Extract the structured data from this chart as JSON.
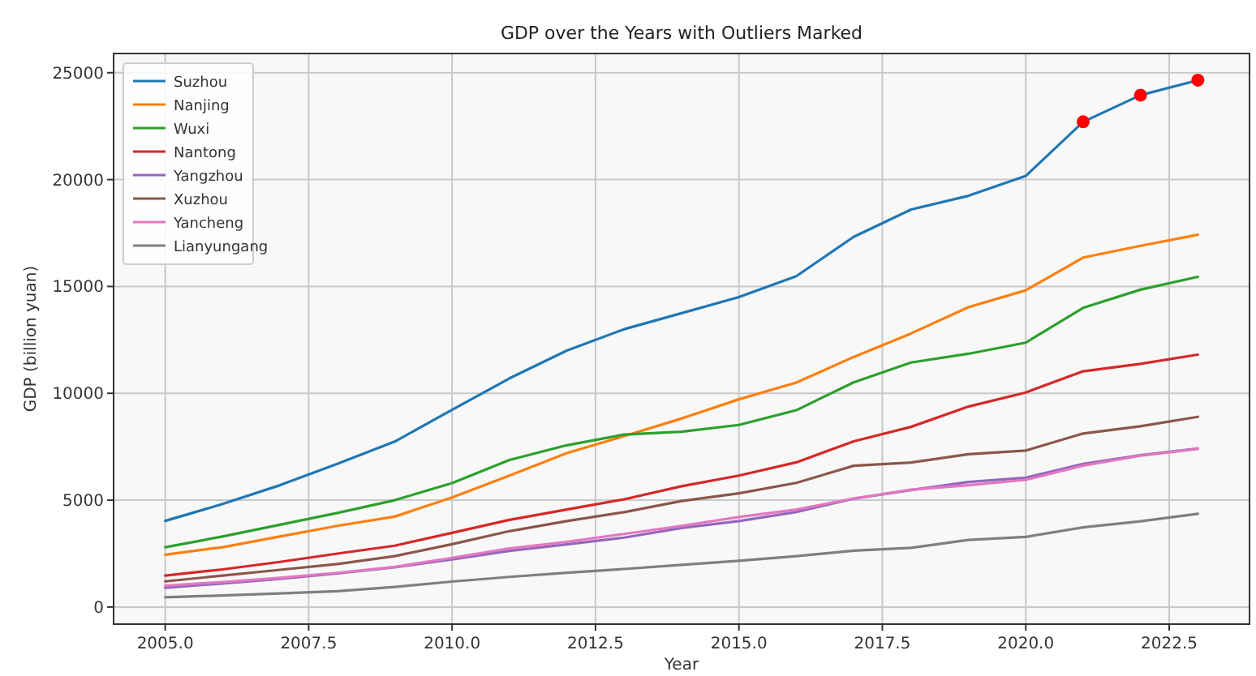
{
  "chart_data": {
    "type": "line",
    "title": "GDP over the Years with Outliers Marked",
    "xlabel": "Year",
    "ylabel": "GDP (billion yuan)",
    "x": [
      2005,
      2006,
      2007,
      2008,
      2009,
      2010,
      2011,
      2012,
      2013,
      2014,
      2015,
      2016,
      2017,
      2018,
      2019,
      2020,
      2021,
      2022,
      2023
    ],
    "series": [
      {
        "name": "Suzhou",
        "color": "#1f77b4",
        "values": [
          4030,
          4820,
          5700,
          6700,
          7740,
          9230,
          10700,
          12000,
          13000,
          13750,
          14500,
          15480,
          17320,
          18600,
          19240,
          20170,
          22700,
          23950,
          24650
        ]
      },
      {
        "name": "Nanjing",
        "color": "#ff7f0e",
        "values": [
          2450,
          2800,
          3300,
          3800,
          4230,
          5130,
          6150,
          7200,
          8000,
          8820,
          9720,
          10500,
          11700,
          12800,
          14030,
          14820,
          16350,
          16900,
          17420
        ]
      },
      {
        "name": "Wuxi",
        "color": "#2ca02c",
        "values": [
          2800,
          3300,
          3850,
          4400,
          5000,
          5800,
          6880,
          7570,
          8070,
          8200,
          8520,
          9210,
          10510,
          11440,
          11850,
          12370,
          14000,
          14850,
          15450
        ]
      },
      {
        "name": "Nantong",
        "color": "#d62728",
        "values": [
          1470,
          1760,
          2110,
          2500,
          2870,
          3470,
          4080,
          4560,
          5040,
          5650,
          6150,
          6770,
          7750,
          8430,
          9380,
          10040,
          11030,
          11380,
          11810
        ]
      },
      {
        "name": "Yangzhou",
        "color": "#9467bd",
        "values": [
          900,
          1100,
          1320,
          1570,
          1860,
          2230,
          2630,
          2930,
          3250,
          3700,
          4020,
          4450,
          5070,
          5470,
          5850,
          6050,
          6700,
          7100,
          7420
        ]
      },
      {
        "name": "Xuzhou",
        "color": "#8c564b",
        "values": [
          1200,
          1470,
          1740,
          2010,
          2380,
          2940,
          3550,
          4020,
          4440,
          4960,
          5320,
          5810,
          6610,
          6760,
          7150,
          7320,
          8120,
          8460,
          8900
        ]
      },
      {
        "name": "Yancheng",
        "color": "#e377c2",
        "values": [
          1000,
          1170,
          1370,
          1600,
          1880,
          2300,
          2740,
          3050,
          3420,
          3800,
          4210,
          4560,
          5080,
          5490,
          5700,
          5950,
          6620,
          7080,
          7400
        ]
      },
      {
        "name": "Lianyungang",
        "color": "#7f7f7f",
        "values": [
          460,
          540,
          640,
          740,
          940,
          1190,
          1410,
          1600,
          1780,
          1970,
          2160,
          2380,
          2640,
          2770,
          3140,
          3280,
          3730,
          4010,
          4360
        ]
      },
      {
        "type": "scatter",
        "color": "#ff0000",
        "marker": "circle",
        "x": [
          2021,
          2022,
          2023
        ],
        "values": [
          22700,
          23950,
          24650
        ]
      }
    ],
    "xlim": [
      2004.1,
      2023.9
    ],
    "ylim": [
      -800,
      25900
    ],
    "xticks": [
      {
        "value": 2005,
        "label": "2005.0"
      },
      {
        "value": 2007.5,
        "label": "2007.5"
      },
      {
        "value": 2010,
        "label": "2010.0"
      },
      {
        "value": 2012.5,
        "label": "2012.5"
      },
      {
        "value": 2015,
        "label": "2015.0"
      },
      {
        "value": 2017.5,
        "label": "2017.5"
      },
      {
        "value": 2020,
        "label": "2020.0"
      },
      {
        "value": 2022.5,
        "label": "2022.5"
      }
    ],
    "yticks": [
      0,
      5000,
      10000,
      15000,
      20000,
      25000
    ],
    "grid": true,
    "legend": "top left"
  }
}
